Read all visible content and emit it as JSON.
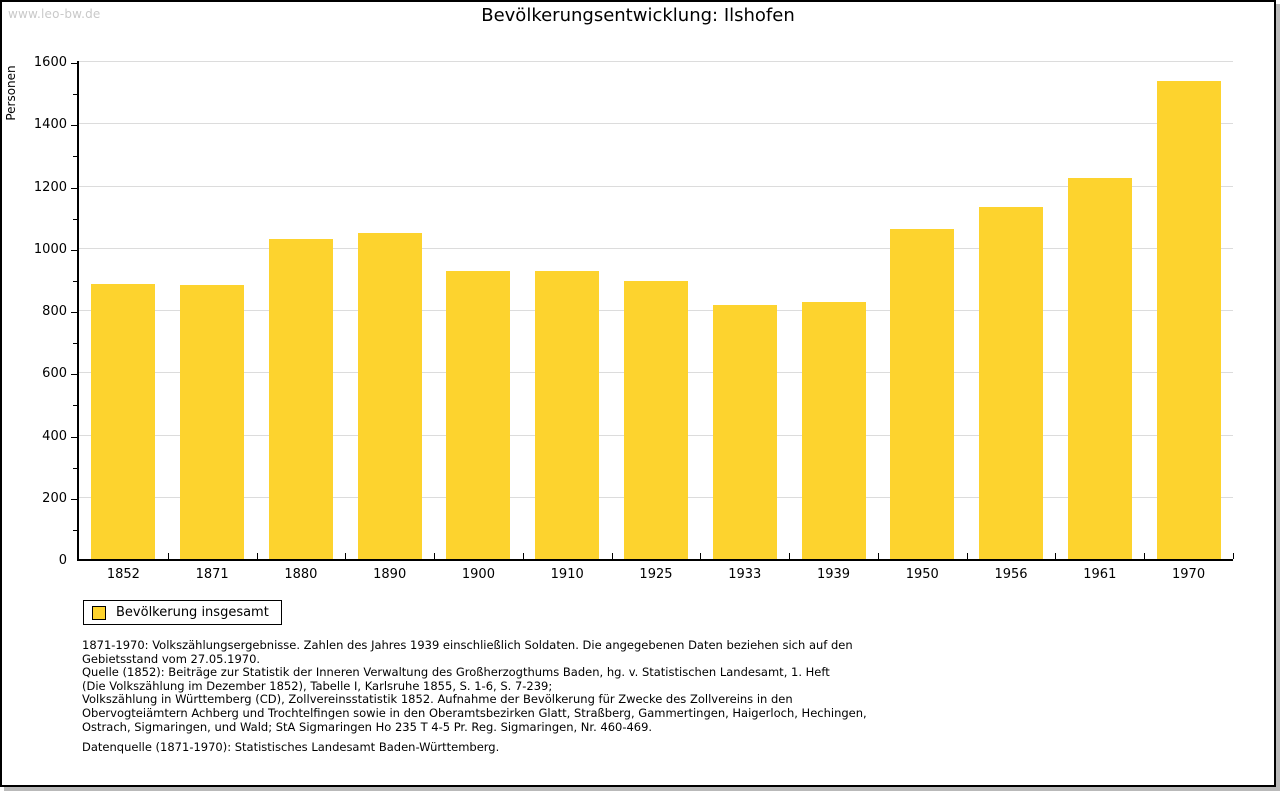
{
  "watermark": "www.leo-bw.de",
  "chart_data": {
    "type": "bar",
    "title": "Bevölkerungsentwicklung: Ilshofen",
    "ylabel": "Personen",
    "xlabel": "",
    "categories": [
      "1852",
      "1871",
      "1880",
      "1890",
      "1900",
      "1910",
      "1925",
      "1933",
      "1939",
      "1950",
      "1956",
      "1961",
      "1970"
    ],
    "values": [
      885,
      881,
      1029,
      1048,
      924,
      927,
      893,
      816,
      826,
      1061,
      1132,
      1223,
      1537
    ],
    "series_name": "Bevölkerung insgesamt",
    "ylim": [
      0,
      1600
    ],
    "ytick_step": 200,
    "yminor_tick_step": 100,
    "grid": "horizontal-major",
    "legend_position": "below-left",
    "bar_color": "#FDD32E"
  },
  "legend": {
    "label": "Bevölkerung insgesamt"
  },
  "footnotes": {
    "block_lines": [
      "1871-1970: Volkszählungsergebnisse. Zahlen des Jahres 1939 einschließlich Soldaten. Die angegebenen Daten beziehen sich auf den",
      "Gebietsstand vom 27.05.1970.",
      "Quelle (1852): Beiträge zur Statistik der Inneren Verwaltung des Großherzogthums Baden, hg. v. Statistischen Landesamt, 1. Heft",
      "(Die Volkszählung im Dezember 1852), Tabelle I, Karlsruhe 1855, S. 1-6, S. 7-239;",
      "Volkszählung in Württemberg (CD), Zollvereinsstatistik 1852. Aufnahme der Bevölkerung für Zwecke des Zollvereins in den",
      "Obervogteiämtern Achberg und Trochtelfingen sowie in den Oberamtsbezirken Glatt, Straßberg, Gammertingen, Haigerloch, Hechingen,",
      "Ostrach, Sigmaringen, und Wald; StA Sigmaringen Ho 235 T 4-5 Pr. Reg. Sigmaringen, Nr. 460-469."
    ],
    "datasource": "Datenquelle (1871-1970): Statistisches Landesamt Baden-Württemberg."
  },
  "colors": {
    "bar": "#FDD32E",
    "grid": "#DCDCDC",
    "axis": "#000000",
    "watermark": "#C9C9C9",
    "frame_border": "#000000",
    "frame_shadow": "#B9B9B9"
  }
}
